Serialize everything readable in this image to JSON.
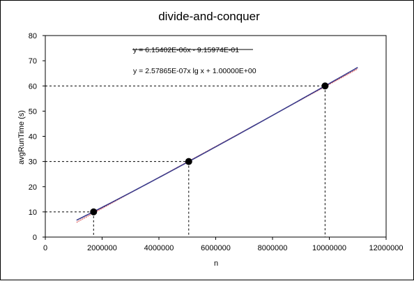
{
  "chart_data": {
    "type": "scatter",
    "title": "divide-and-conquer",
    "xlabel": "n",
    "ylabel": "avgRunTime  (s)",
    "xlim": [
      0,
      12000000
    ],
    "ylim": [
      0,
      80
    ],
    "x_ticks": [
      0,
      2000000,
      4000000,
      6000000,
      8000000,
      10000000,
      12000000
    ],
    "x_tick_labels": [
      "0",
      "2000000",
      "4000000",
      "6000000",
      "8000000",
      "10000000",
      "12000000"
    ],
    "y_ticks": [
      0,
      10,
      20,
      30,
      40,
      50,
      60,
      70,
      80
    ],
    "y_tick_labels": [
      "0",
      "10",
      "20",
      "30",
      "40",
      "50",
      "60",
      "70",
      "80"
    ],
    "grid": false,
    "points": [
      {
        "x": 1700000,
        "y": 10
      },
      {
        "x": 5050000,
        "y": 30
      },
      {
        "x": 9850000,
        "y": 60
      }
    ],
    "fit_lines": [
      {
        "equation": "y = 6.15402E-06x - 9.15974E-01",
        "form": "linear",
        "slope": 6.15402e-06,
        "intercept": -0.915974,
        "x_range": [
          1100000,
          11000000
        ],
        "color": "#d63a3a",
        "struck_through": true
      },
      {
        "equation": "y = 2.57865E-07x lg x + 1.00000E+00",
        "form": "nlogn",
        "coef": 2.57865e-07,
        "intercept": 1.0,
        "x_range": [
          1100000,
          11000000
        ],
        "color": "#3a3a8a",
        "struck_through": false
      }
    ],
    "reference_lines_dashed": true,
    "colors": {
      "points": "#000000",
      "axis": "#000000"
    }
  }
}
